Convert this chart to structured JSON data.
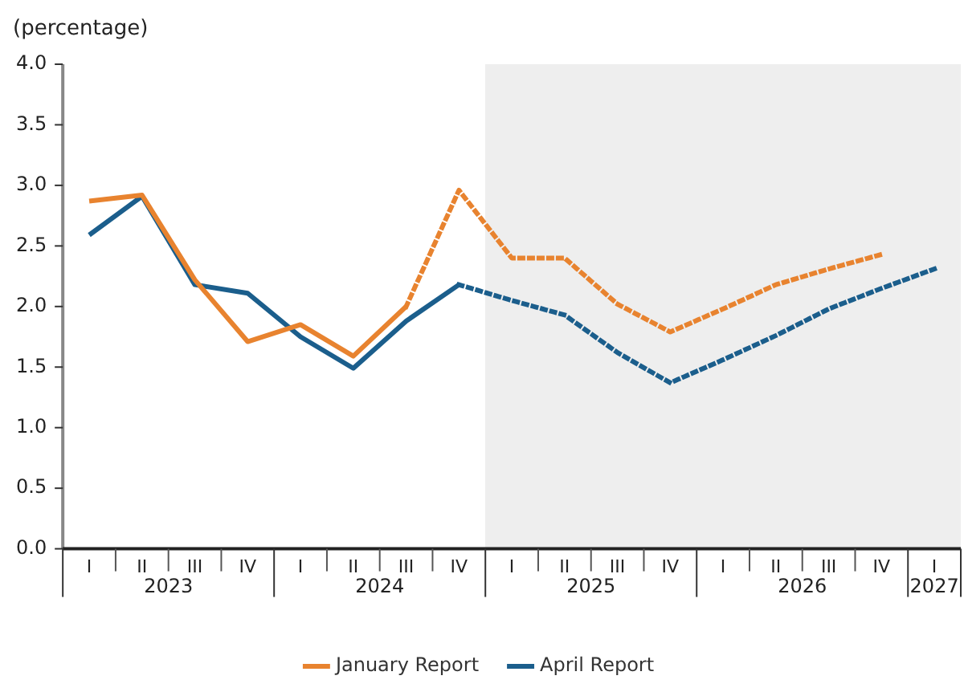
{
  "chart_data": {
    "type": "line",
    "ylabel": "(percentage)",
    "categories": [
      "I",
      "II",
      "III",
      "IV",
      "I",
      "II",
      "III",
      "IV",
      "I",
      "II",
      "III",
      "IV",
      "I",
      "II",
      "III",
      "IV",
      "I"
    ],
    "ylim": [
      0,
      4
    ],
    "yticks": [
      {
        "value": 0,
        "label": "0.0"
      },
      {
        "value": 0.5,
        "label": "0.5"
      },
      {
        "value": 1,
        "label": "1.0"
      },
      {
        "value": 1.5,
        "label": "1.5"
      },
      {
        "value": 2,
        "label": "2.0"
      },
      {
        "value": 2.5,
        "label": "2.5"
      },
      {
        "value": 3,
        "label": "3.0"
      },
      {
        "value": 3.5,
        "label": "3.5"
      },
      {
        "value": 4,
        "label": "4.0"
      }
    ],
    "annotations": [
      "2023",
      "2024",
      "2025",
      "2026",
      "2027"
    ],
    "grid": false,
    "legend": "bottom",
    "marker": "none",
    "series": [
      {
        "name": "January Report",
        "color": "#e8832f",
        "line_style": "solid",
        "values": [
          2.87,
          2.92,
          2.22,
          1.71,
          1.85,
          1.59,
          2.0,
          null,
          null,
          null,
          null,
          null,
          null,
          null,
          null,
          null,
          null
        ]
      },
      {
        "color": "#e8832f",
        "line_style": "dotted",
        "values": [
          null,
          null,
          null,
          null,
          null,
          null,
          2.0,
          2.96,
          2.4,
          2.4,
          2.02,
          1.79,
          1.98,
          2.18,
          2.31,
          2.43,
          null
        ]
      },
      {
        "name": "April Report",
        "color": "#1b5e8c",
        "line_style": "solid",
        "values": [
          2.59,
          2.91,
          2.18,
          2.11,
          1.75,
          1.49,
          1.88,
          2.18,
          null,
          null,
          null,
          null,
          null,
          null,
          null,
          null,
          null
        ]
      },
      {
        "color": "#1b5e8c",
        "line_style": "dotted",
        "values": [
          null,
          null,
          null,
          null,
          null,
          null,
          null,
          2.18,
          2.05,
          1.93,
          1.62,
          1.37,
          1.56,
          1.76,
          1.98,
          2.15,
          2.31
        ]
      }
    ]
  }
}
